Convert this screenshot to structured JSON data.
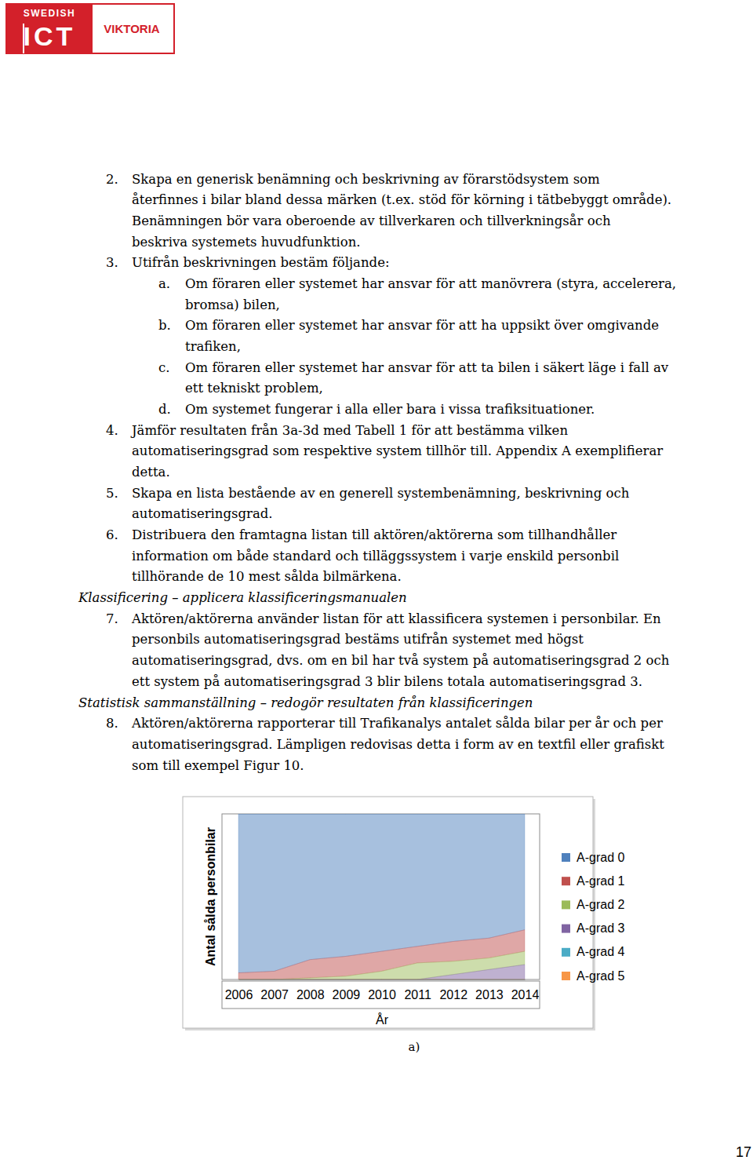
{
  "header": {
    "logo_top": "SWEDISH",
    "logo_mark": "ICT",
    "logo_name": "VIKTORIA"
  },
  "body": [
    {
      "number": "2.",
      "lines": [
        "Skapa en generisk benämning och beskrivning av förarstödsystem som",
        "återfinnes i bilar bland dessa märken (t.ex. stöd för körning i tätbebyggt område).",
        "Benämningen bör vara oberoende av tillverkaren och tillverkningsår och",
        "beskriva systemets huvudfunktion."
      ]
    },
    {
      "number": "3.",
      "lines": [
        "Utifrån beskrivningen bestäm följande:"
      ],
      "subitems": [
        {
          "number": "a.",
          "lines": [
            "Om föraren eller systemet har ansvar för att manövrera (styra, accelerera,",
            "bromsa) bilen,"
          ]
        },
        {
          "number": "b.",
          "lines": [
            "Om föraren eller systemet har ansvar för att ha uppsikt över omgivande",
            "trafiken,"
          ]
        },
        {
          "number": "c.",
          "lines": [
            "Om föraren eller systemet har ansvar för att ta bilen i säkert läge i fall av",
            "ett tekniskt problem,"
          ]
        },
        {
          "number": "d.",
          "lines": [
            "Om systemet fungerar i alla eller bara i vissa trafiksituationer."
          ]
        }
      ]
    },
    {
      "number": "4.",
      "lines": [
        "Jämför resultaten från 3a-3d med Tabell 1 för att bestämma vilken",
        "automatiseringsgrad som respektive system tillhör till. Appendix A exemplifierar",
        "detta."
      ]
    },
    {
      "number": "5.",
      "lines": [
        "Skapa en lista bestående av en generell systembenämning, beskrivning och",
        "automatiseringsgrad."
      ]
    },
    {
      "number": "6.",
      "lines": [
        "Distribuera den framtagna listan till aktören/aktörerna som tillhandhåller",
        "information om både standard och tilläggssystem i varje enskild personbil",
        "tillhörande de 10 mest sålda bilmärkena."
      ]
    },
    {
      "heading": "Klassificering – applicera klassificeringsmanualen"
    },
    {
      "number": "7.",
      "lines": [
        "Aktören/aktörerna använder listan för att klassificera systemen i personbilar. En",
        "personbils automatiseringsgrad bestäms utifrån systemet med högst",
        "automatiseringsgrad, dvs. om en bil har två system på automatiseringsgrad 2 och",
        "ett system på automatiseringsgrad 3 blir bilens totala automatiseringsgrad 3."
      ]
    },
    {
      "heading": "Statistisk sammanställning – redogör resultaten från klassificeringen"
    },
    {
      "number": "8.",
      "lines": [
        "Aktören/aktörerna rapporterar till Trafikanalys antalet sålda bilar per år och per",
        "automatiseringsgrad. Lämpligen redovisas detta i form av en textfil eller grafiskt",
        "som till exempel Figur 10."
      ]
    }
  ],
  "chart_data": {
    "type": "area",
    "stacked": true,
    "x_label": "År",
    "y_label": "Antal sålda personbilar",
    "categories": [
      "2006",
      "2007",
      "2008",
      "2009",
      "2010",
      "2011",
      "2012",
      "2013",
      "2014"
    ],
    "ylim": [
      0,
      100
    ],
    "tick_labels": "x",
    "legend": "right",
    "series": [
      {
        "name": "A-grad 0",
        "color": "#4f81bd",
        "values": [
          96,
          95,
          88,
          86,
          83,
          80,
          77,
          75,
          70
        ]
      },
      {
        "name": "A-grad 1",
        "color": "#c0504d",
        "values": [
          4,
          5,
          11,
          12,
          12,
          10,
          12,
          12,
          13
        ]
      },
      {
        "name": "A-grad 2",
        "color": "#9bbb59",
        "values": [
          0,
          0,
          1,
          2,
          5,
          10,
          8,
          7,
          8
        ]
      },
      {
        "name": "A-grad 3",
        "color": "#8064a2",
        "values": [
          0,
          0,
          0,
          0,
          0,
          0,
          3,
          6,
          9
        ]
      },
      {
        "name": "A-grad 4",
        "color": "#4bacc6",
        "values": [
          0,
          0,
          0,
          0,
          0,
          0,
          0,
          0,
          0
        ]
      },
      {
        "name": "A-grad 5",
        "color": "#f79646",
        "values": [
          0,
          0,
          0,
          0,
          0,
          0,
          0,
          0,
          0
        ]
      }
    ]
  },
  "caption": "a)",
  "page_number": "17"
}
